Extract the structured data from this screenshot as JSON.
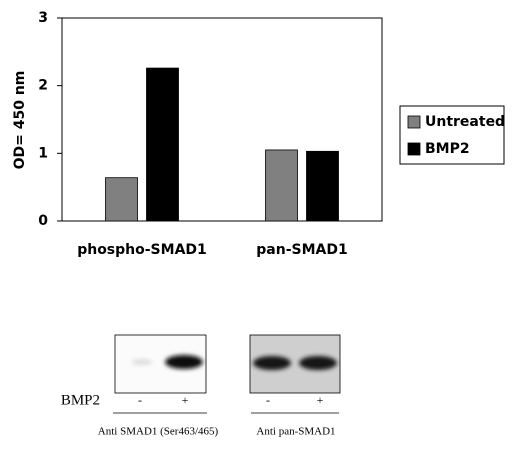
{
  "chart_data": {
    "type": "bar",
    "y_label": "OD= 450 nm",
    "categories": [
      "phospho-SMAD1",
      "pan-SMAD1"
    ],
    "series": [
      {
        "name": "Untreated",
        "color": "#808080",
        "values": [
          0.64,
          1.05
        ]
      },
      {
        "name": "BMP2",
        "color": "#000000",
        "values": [
          2.26,
          1.03
        ]
      }
    ],
    "ylim": [
      0,
      3
    ],
    "yticks": [
      0,
      1,
      2,
      3
    ],
    "grid": false,
    "legend": "right"
  },
  "blot": {
    "treatment_label": "BMP2",
    "lanes": [
      "-",
      "+",
      "-",
      "+"
    ],
    "antibodies": [
      "Anti SMAD1 (Ser463/465)",
      "Anti pan-SMAD1"
    ]
  }
}
